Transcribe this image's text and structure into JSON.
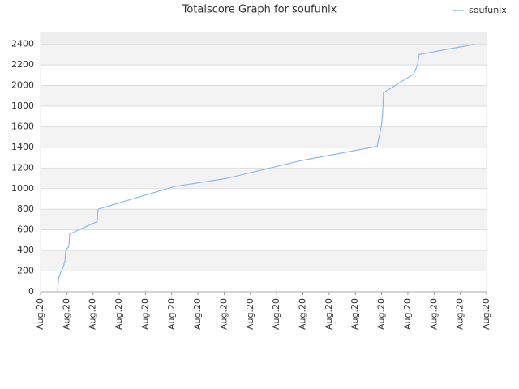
{
  "chart_data": {
    "type": "line",
    "title": "Totalscore Graph for soufunix",
    "x": [
      0.65,
      0.68,
      0.74,
      0.87,
      0.93,
      0.96,
      1.08,
      1.11,
      2.16,
      2.19,
      5.1,
      7.11,
      9.89,
      12.83,
      13.0,
      13.04,
      13.07,
      14.22,
      14.37,
      14.43,
      16.54
    ],
    "series": [
      {
        "name": "soufunix",
        "color": "#88bbee",
        "values": [
          0,
          120,
          170,
          240,
          300,
          400,
          440,
          560,
          680,
          800,
          1020,
          1100,
          1270,
          1410,
          1620,
          1730,
          1930,
          2110,
          2200,
          2300,
          2400
        ]
      }
    ],
    "xlim": [
      0,
      17
    ],
    "xticks": [
      {
        "value": 0,
        "label": "Aug.20"
      },
      {
        "value": 1,
        "label": "Aug.20"
      },
      {
        "value": 2,
        "label": "Aug.20"
      },
      {
        "value": 3,
        "label": "Aug.20"
      },
      {
        "value": 4,
        "label": "Aug.20"
      },
      {
        "value": 5,
        "label": "Aug.20"
      },
      {
        "value": 6,
        "label": "Aug.20"
      },
      {
        "value": 7,
        "label": "Aug.20"
      },
      {
        "value": 8,
        "label": "Aug.20"
      },
      {
        "value": 9,
        "label": "Aug.20"
      },
      {
        "value": 10,
        "label": "Aug.20"
      },
      {
        "value": 11,
        "label": "Aug.20"
      },
      {
        "value": 12,
        "label": "Aug.20"
      },
      {
        "value": 13,
        "label": "Aug.20"
      },
      {
        "value": 14,
        "label": "Aug.20"
      },
      {
        "value": 15,
        "label": "Aug.20"
      },
      {
        "value": 16,
        "label": "Aug.20"
      },
      {
        "value": 17,
        "label": "Aug.20"
      }
    ],
    "ylim": [
      0,
      2515
    ],
    "yticks": [
      0,
      200,
      400,
      600,
      800,
      1000,
      1200,
      1400,
      1600,
      1800,
      2000,
      2200,
      2400
    ],
    "grid": true
  }
}
